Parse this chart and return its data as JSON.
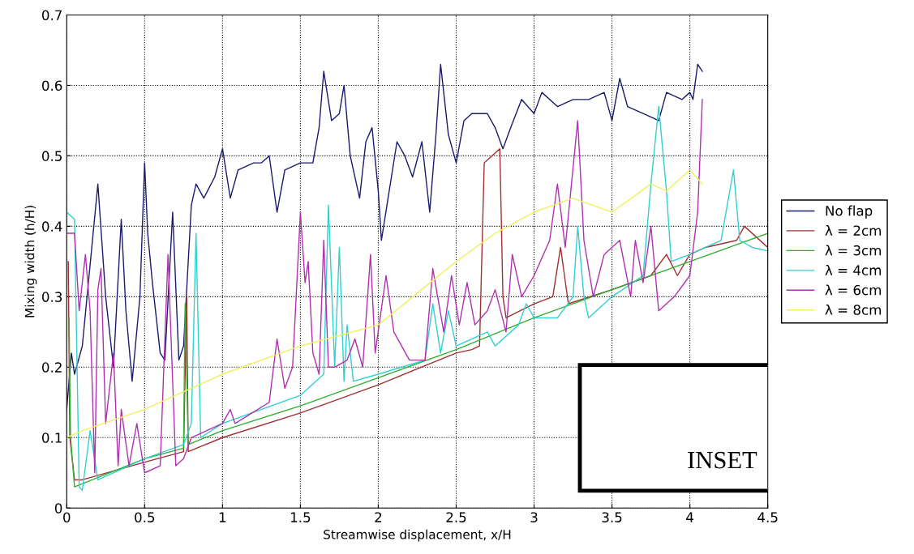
{
  "chart_data": {
    "type": "line",
    "xlabel": "Streamwise displacement, x/H",
    "ylabel": "Mixing width (h/H)",
    "xlim": [
      0,
      4.5
    ],
    "xticks": [
      0,
      0.5,
      1,
      1.5,
      2,
      2.5,
      3,
      3.5,
      4,
      4.5
    ],
    "ylim": [
      0,
      0.7
    ],
    "yticks": [
      0,
      0.1,
      0.2,
      0.3,
      0.4,
      0.5,
      0.6,
      0.7
    ],
    "grid": true,
    "legend": "right",
    "line_style": "solid",
    "marker": "none",
    "annotations": [
      "INSET"
    ],
    "series": [
      {
        "name": "No flap",
        "color": "#1a1a6e",
        "x": [
          0,
          0.03,
          0.05,
          0.1,
          0.2,
          0.25,
          0.3,
          0.35,
          0.38,
          0.42,
          0.47,
          0.5,
          0.52,
          0.55,
          0.6,
          0.63,
          0.68,
          0.72,
          0.75,
          0.8,
          0.83,
          0.88,
          0.95,
          1.0,
          1.05,
          1.1,
          1.2,
          1.25,
          1.3,
          1.35,
          1.4,
          1.5,
          1.58,
          1.62,
          1.65,
          1.7,
          1.75,
          1.78,
          1.82,
          1.88,
          1.92,
          1.96,
          2.0,
          2.02,
          2.07,
          2.12,
          2.17,
          2.22,
          2.28,
          2.33,
          2.37,
          2.4,
          2.45,
          2.5,
          2.55,
          2.6,
          2.7,
          2.75,
          2.8,
          2.85,
          2.92,
          3.0,
          3.05,
          3.15,
          3.25,
          3.35,
          3.45,
          3.5,
          3.55,
          3.6,
          3.7,
          3.8,
          3.85,
          3.95,
          4.0,
          4.02,
          4.05,
          4.08
        ],
        "values": [
          0.14,
          0.22,
          0.19,
          0.23,
          0.46,
          0.3,
          0.2,
          0.41,
          0.28,
          0.18,
          0.3,
          0.49,
          0.39,
          0.32,
          0.22,
          0.21,
          0.42,
          0.21,
          0.23,
          0.43,
          0.46,
          0.44,
          0.47,
          0.51,
          0.44,
          0.48,
          0.49,
          0.49,
          0.5,
          0.42,
          0.48,
          0.49,
          0.49,
          0.54,
          0.62,
          0.55,
          0.56,
          0.6,
          0.5,
          0.44,
          0.52,
          0.54,
          0.45,
          0.38,
          0.45,
          0.52,
          0.5,
          0.47,
          0.52,
          0.42,
          0.53,
          0.63,
          0.53,
          0.49,
          0.55,
          0.56,
          0.56,
          0.54,
          0.51,
          0.54,
          0.58,
          0.56,
          0.59,
          0.57,
          0.58,
          0.58,
          0.59,
          0.55,
          0.61,
          0.57,
          0.56,
          0.55,
          0.59,
          0.58,
          0.59,
          0.58,
          0.63,
          0.62
        ]
      },
      {
        "name": "λ = 2cm",
        "color": "#a03030",
        "x": [
          0.01,
          0.02,
          0.05,
          0.1,
          0.5,
          0.75,
          0.77,
          0.78,
          1.0,
          1.5,
          2.0,
          2.5,
          2.6,
          2.65,
          2.68,
          2.73,
          2.78,
          2.8,
          2.82,
          3.0,
          3.12,
          3.17,
          3.22,
          3.5,
          3.75,
          3.85,
          3.92,
          4.0,
          4.1,
          4.3,
          4.35,
          4.5
        ],
        "values": [
          0.35,
          0.1,
          0.04,
          0.04,
          0.065,
          0.08,
          0.3,
          0.08,
          0.1,
          0.135,
          0.175,
          0.22,
          0.225,
          0.23,
          0.49,
          0.5,
          0.51,
          0.3,
          0.27,
          0.29,
          0.3,
          0.37,
          0.29,
          0.31,
          0.33,
          0.36,
          0.33,
          0.36,
          0.37,
          0.38,
          0.4,
          0.37
        ]
      },
      {
        "name": "λ = 3cm",
        "color": "#30b030",
        "x": [
          0.015,
          0.025,
          0.05,
          0.5,
          0.75,
          0.76,
          0.78,
          1.0,
          1.5,
          2.0,
          2.5,
          3.0,
          3.5,
          4.0,
          4.5
        ],
        "values": [
          0.27,
          0.1,
          0.03,
          0.07,
          0.085,
          0.29,
          0.09,
          0.11,
          0.145,
          0.185,
          0.225,
          0.27,
          0.31,
          0.35,
          0.39
        ]
      },
      {
        "name": "λ = 4cm",
        "color": "#30d0d0",
        "x": [
          0,
          0.05,
          0.08,
          0.1,
          0.15,
          0.2,
          0.5,
          0.75,
          0.8,
          0.83,
          0.86,
          1.0,
          1.5,
          1.65,
          1.68,
          1.72,
          1.75,
          1.78,
          1.8,
          1.84,
          2.0,
          2.3,
          2.35,
          2.4,
          2.45,
          2.5,
          2.7,
          2.75,
          2.9,
          2.95,
          3.0,
          3.15,
          3.25,
          3.28,
          3.32,
          3.35,
          3.5,
          3.7,
          3.75,
          3.8,
          3.85,
          3.88,
          4.0,
          4.1,
          4.2,
          4.28,
          4.32,
          4.4,
          4.5
        ],
        "values": [
          0.42,
          0.41,
          0.03,
          0.025,
          0.11,
          0.04,
          0.07,
          0.09,
          0.12,
          0.39,
          0.1,
          0.12,
          0.16,
          0.19,
          0.43,
          0.2,
          0.37,
          0.18,
          0.26,
          0.18,
          0.19,
          0.21,
          0.29,
          0.22,
          0.28,
          0.23,
          0.25,
          0.23,
          0.26,
          0.29,
          0.27,
          0.27,
          0.3,
          0.4,
          0.3,
          0.27,
          0.3,
          0.33,
          0.46,
          0.57,
          0.45,
          0.35,
          0.36,
          0.37,
          0.38,
          0.48,
          0.38,
          0.37,
          0.365
        ]
      },
      {
        "name": "λ = 6cm",
        "color": "#b030b0",
        "x": [
          0,
          0.05,
          0.08,
          0.12,
          0.15,
          0.18,
          0.2,
          0.22,
          0.25,
          0.3,
          0.33,
          0.35,
          0.4,
          0.45,
          0.5,
          0.6,
          0.65,
          0.7,
          0.75,
          0.8,
          1.0,
          1.05,
          1.08,
          1.3,
          1.35,
          1.4,
          1.45,
          1.5,
          1.53,
          1.55,
          1.58,
          1.62,
          1.65,
          1.68,
          1.72,
          1.8,
          1.85,
          1.9,
          1.95,
          1.98,
          2.05,
          2.1,
          2.2,
          2.3,
          2.35,
          2.42,
          2.47,
          2.52,
          2.57,
          2.62,
          2.7,
          2.75,
          2.82,
          2.86,
          2.92,
          3.0,
          3.1,
          3.15,
          3.2,
          3.28,
          3.32,
          3.38,
          3.45,
          3.55,
          3.62,
          3.65,
          3.7,
          3.75,
          3.8,
          3.9,
          4.0,
          4.05,
          4.08
        ],
        "values": [
          0.39,
          0.39,
          0.28,
          0.36,
          0.28,
          0.05,
          0.31,
          0.34,
          0.12,
          0.22,
          0.06,
          0.14,
          0.06,
          0.12,
          0.05,
          0.06,
          0.36,
          0.06,
          0.07,
          0.1,
          0.12,
          0.14,
          0.12,
          0.15,
          0.24,
          0.17,
          0.2,
          0.42,
          0.32,
          0.35,
          0.22,
          0.19,
          0.38,
          0.2,
          0.2,
          0.21,
          0.24,
          0.2,
          0.36,
          0.22,
          0.33,
          0.25,
          0.21,
          0.21,
          0.34,
          0.25,
          0.33,
          0.26,
          0.32,
          0.26,
          0.28,
          0.31,
          0.25,
          0.36,
          0.3,
          0.33,
          0.38,
          0.46,
          0.37,
          0.55,
          0.38,
          0.3,
          0.36,
          0.38,
          0.3,
          0.38,
          0.32,
          0.4,
          0.28,
          0.3,
          0.33,
          0.42,
          0.58
        ]
      },
      {
        "name": "λ = 8cm",
        "color": "#f0f060",
        "x": [
          0,
          0.1,
          0.5,
          1.0,
          1.5,
          2.0,
          2.5,
          2.75,
          3.0,
          3.25,
          3.5,
          3.75,
          3.85,
          4.0,
          4.08
        ],
        "values": [
          0.1,
          0.11,
          0.14,
          0.19,
          0.23,
          0.26,
          0.35,
          0.39,
          0.42,
          0.44,
          0.42,
          0.46,
          0.45,
          0.48,
          0.46
        ]
      }
    ]
  }
}
